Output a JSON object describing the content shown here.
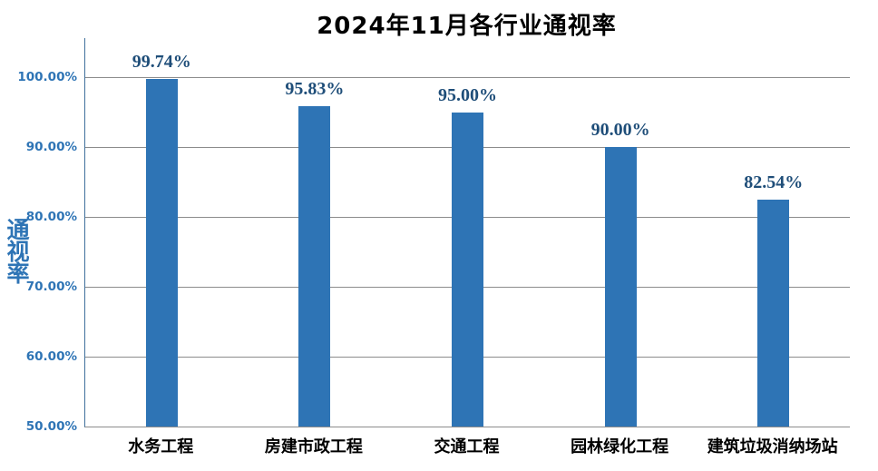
{
  "chart_data": {
    "type": "bar",
    "title": "2024年11月各行业通视率",
    "ylabel": "通视率",
    "xlabel": "",
    "categories": [
      "水务工程",
      "房建市政工程",
      "交通工程",
      "园林绿化工程",
      "建筑垃圾消纳场站"
    ],
    "values": [
      99.74,
      95.83,
      95.0,
      90.0,
      82.54
    ],
    "data_labels": [
      "99.74%",
      "95.83%",
      "95.00%",
      "90.00%",
      "82.54%"
    ],
    "y_ticks": [
      {
        "value": 100,
        "label": "100.00%"
      },
      {
        "value": 90,
        "label": "90.00%"
      },
      {
        "value": 80,
        "label": "80.00%"
      },
      {
        "value": 70,
        "label": "70.00%"
      },
      {
        "value": 60,
        "label": "60.00%"
      },
      {
        "value": 50,
        "label": "50.00%"
      }
    ],
    "ylim": [
      50,
      105.6
    ],
    "grid": true,
    "legend": "none",
    "colors": {
      "bar": "#2E74B5",
      "data_label": "#1F4E79",
      "tick_label": "#2E74B5",
      "axis_title": "#2E74B5",
      "gridline": "#8C8C8C",
      "y_axis_line": "#41719C",
      "title": "#000000",
      "category_label": "#000000",
      "background": "#FFFFFF"
    }
  }
}
